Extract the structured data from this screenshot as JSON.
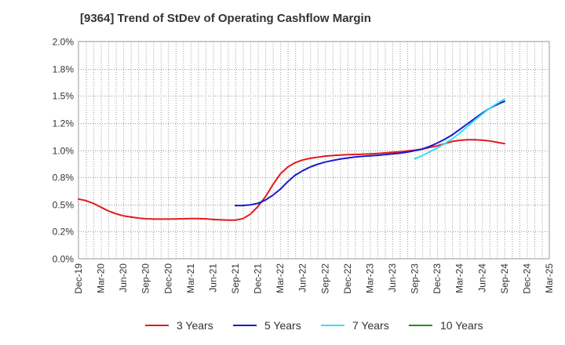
{
  "chart_data": {
    "type": "line",
    "title": "[9364]  Trend of StDev of Operating Cashflow Margin",
    "xlabel": "",
    "ylabel": "",
    "ylim": [
      0,
      2.0
    ],
    "y_ticks": [
      "0.0%",
      "0.2%",
      "0.5%",
      "0.8%",
      "1.0%",
      "1.2%",
      "1.5%",
      "1.8%",
      "2.0%"
    ],
    "y_tick_values": [
      0,
      0.25,
      0.5,
      0.75,
      1.0,
      1.25,
      1.5,
      1.75,
      2.0
    ],
    "x_ticks": [
      "Dec-19",
      "Mar-20",
      "Jun-20",
      "Sep-20",
      "Dec-20",
      "Mar-21",
      "Jun-21",
      "Sep-21",
      "Dec-21",
      "Mar-22",
      "Jun-22",
      "Sep-22",
      "Dec-22",
      "Mar-23",
      "Jun-23",
      "Sep-23",
      "Dec-23",
      "Mar-24",
      "Jun-24",
      "Sep-24",
      "Dec-24",
      "Mar-25"
    ],
    "grid": true,
    "legend_position": "bottom",
    "colors": {
      "3 Years": "#e31a1c",
      "5 Years": "#1a1acc",
      "7 Years": "#33e0f0",
      "10 Years": "#2a8a2a"
    },
    "series": [
      {
        "name": "3 Years",
        "color": "#e31a1c",
        "x": [
          "Dec-19",
          "Jan-20",
          "Feb-20",
          "Mar-20",
          "Apr-20",
          "May-20",
          "Jun-20",
          "Jul-20",
          "Aug-20",
          "Sep-20",
          "Oct-20",
          "Nov-20",
          "Dec-20",
          "Jan-21",
          "Feb-21",
          "Mar-21",
          "Apr-21",
          "May-21",
          "Jun-21",
          "Jul-21",
          "Aug-21",
          "Sep-21",
          "Oct-21",
          "Nov-21",
          "Dec-21",
          "Jan-22",
          "Feb-22",
          "Mar-22",
          "Apr-22",
          "May-22",
          "Jun-22",
          "Jul-22",
          "Aug-22",
          "Sep-22",
          "Oct-22",
          "Nov-22",
          "Dec-22",
          "Jan-23",
          "Feb-23",
          "Mar-23",
          "Apr-23",
          "May-23",
          "Jun-23",
          "Jul-23",
          "Aug-23",
          "Sep-23",
          "Oct-23",
          "Nov-23",
          "Dec-23",
          "Jan-24",
          "Feb-24",
          "Mar-24",
          "Apr-24",
          "May-24",
          "Jun-24",
          "Jul-24",
          "Aug-24",
          "Sep-24"
        ],
        "values": [
          0.55,
          0.535,
          0.51,
          0.475,
          0.44,
          0.415,
          0.395,
          0.385,
          0.375,
          0.368,
          0.365,
          0.365,
          0.365,
          0.366,
          0.368,
          0.37,
          0.37,
          0.368,
          0.362,
          0.358,
          0.355,
          0.355,
          0.37,
          0.41,
          0.48,
          0.57,
          0.68,
          0.78,
          0.845,
          0.885,
          0.91,
          0.925,
          0.935,
          0.945,
          0.95,
          0.955,
          0.958,
          0.96,
          0.963,
          0.965,
          0.97,
          0.975,
          0.98,
          0.985,
          0.993,
          1.0,
          1.01,
          1.025,
          1.04,
          1.06,
          1.08,
          1.09,
          1.095,
          1.095,
          1.092,
          1.085,
          1.072,
          1.06
        ]
      },
      {
        "name": "5 Years",
        "color": "#1a1acc",
        "x": [
          "Sep-21",
          "Oct-21",
          "Nov-21",
          "Dec-21",
          "Jan-22",
          "Feb-22",
          "Mar-22",
          "Apr-22",
          "May-22",
          "Jun-22",
          "Jul-22",
          "Aug-22",
          "Sep-22",
          "Oct-22",
          "Nov-22",
          "Dec-22",
          "Jan-23",
          "Feb-23",
          "Mar-23",
          "Apr-23",
          "May-23",
          "Jun-23",
          "Jul-23",
          "Aug-23",
          "Sep-23",
          "Oct-23",
          "Nov-23",
          "Dec-23",
          "Jan-24",
          "Feb-24",
          "Mar-24",
          "Apr-24",
          "May-24",
          "Jun-24",
          "Jul-24",
          "Aug-24",
          "Sep-24"
        ],
        "values": [
          0.49,
          0.49,
          0.497,
          0.51,
          0.54,
          0.585,
          0.64,
          0.71,
          0.77,
          0.81,
          0.845,
          0.87,
          0.89,
          0.905,
          0.918,
          0.928,
          0.937,
          0.943,
          0.948,
          0.952,
          0.958,
          0.965,
          0.972,
          0.982,
          0.995,
          1.01,
          1.035,
          1.065,
          1.1,
          1.14,
          1.19,
          1.24,
          1.29,
          1.34,
          1.385,
          1.42,
          1.45
        ]
      },
      {
        "name": "7 Years",
        "color": "#33e0f0",
        "x": [
          "Sep-23",
          "Oct-23",
          "Nov-23",
          "Dec-23",
          "Jan-24",
          "Feb-24",
          "Mar-24",
          "Apr-24",
          "May-24",
          "Jun-24",
          "Jul-24",
          "Aug-24",
          "Sep-24"
        ],
        "values": [
          0.92,
          0.95,
          0.985,
          1.02,
          1.06,
          1.105,
          1.155,
          1.215,
          1.275,
          1.33,
          1.385,
          1.43,
          1.47
        ]
      },
      {
        "name": "10 Years",
        "color": "#2a8a2a",
        "x": [],
        "values": []
      }
    ]
  }
}
